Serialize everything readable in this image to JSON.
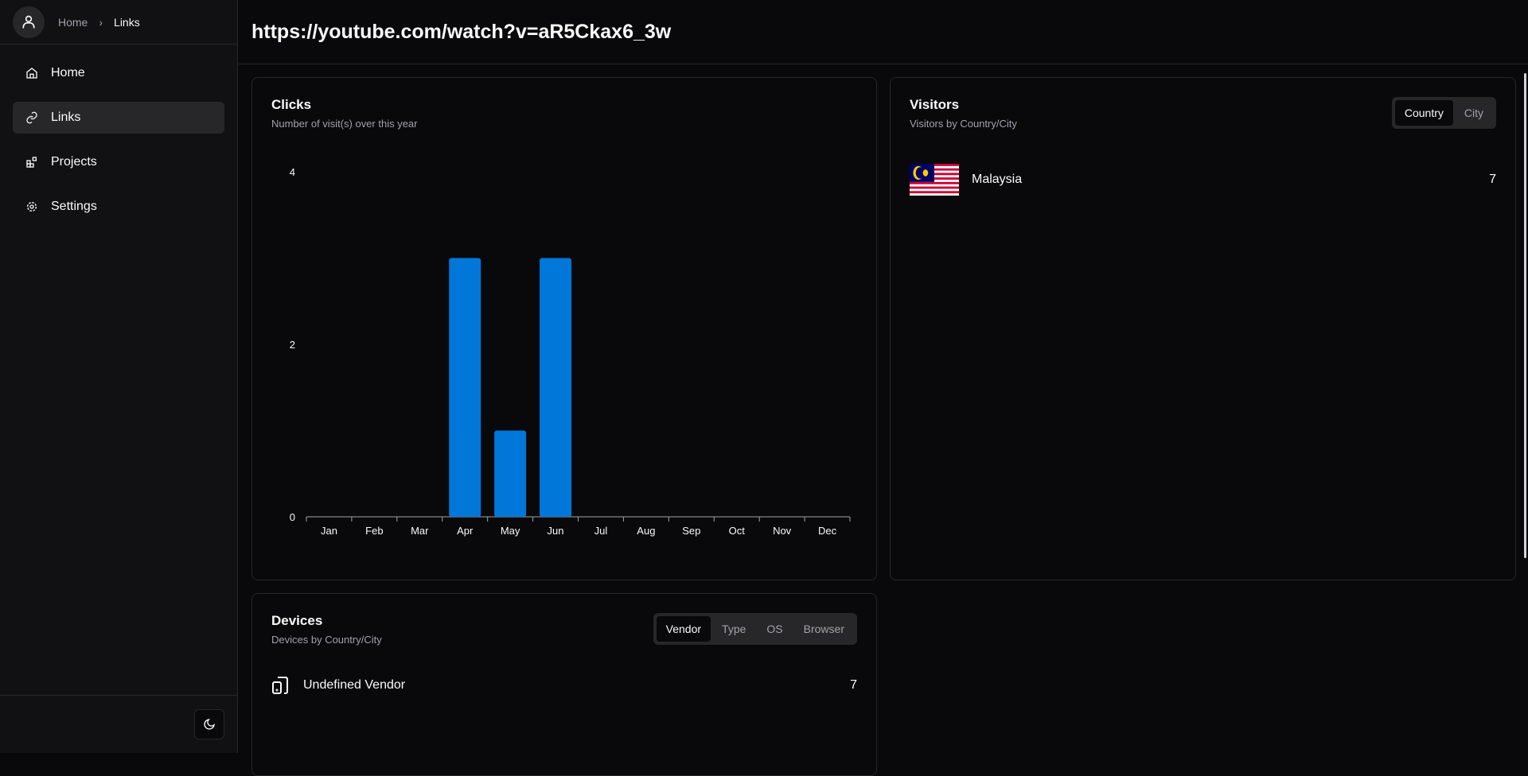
{
  "breadcrumb": {
    "home": "Home",
    "current": "Links"
  },
  "sidebar": {
    "items": [
      {
        "label": "Home",
        "icon": "home-icon"
      },
      {
        "label": "Links",
        "icon": "link-icon",
        "active": true
      },
      {
        "label": "Projects",
        "icon": "projects-icon"
      },
      {
        "label": "Settings",
        "icon": "gear-icon"
      }
    ]
  },
  "header": {
    "title": "https://youtube.com/watch?v=aR5Ckax6_3w"
  },
  "clicks": {
    "title": "Clicks",
    "subtitle": "Number of visit(s) over this year"
  },
  "visitors": {
    "title": "Visitors",
    "subtitle": "Visitors by Country/City",
    "tabs": [
      "Country",
      "City"
    ],
    "active_tab": "Country",
    "rows": [
      {
        "label": "Malaysia",
        "value": "7",
        "flag": "malaysia"
      }
    ]
  },
  "devices": {
    "title": "Devices",
    "subtitle": "Devices by Country/City",
    "tabs": [
      "Vendor",
      "Type",
      "OS",
      "Browser"
    ],
    "active_tab": "Vendor",
    "rows": [
      {
        "label": "Undefined Vendor",
        "value": "7",
        "icon": "device-icon"
      }
    ]
  },
  "chart_data": {
    "type": "bar",
    "categories": [
      "Jan",
      "Feb",
      "Mar",
      "Apr",
      "May",
      "Jun",
      "Jul",
      "Aug",
      "Sep",
      "Oct",
      "Nov",
      "Dec"
    ],
    "values": [
      0,
      0,
      0,
      3,
      1,
      3,
      0,
      0,
      0,
      0,
      0,
      0
    ],
    "yticks": [
      0,
      2,
      4
    ],
    "ylim": [
      0,
      4
    ],
    "color": "#0077d9",
    "grid": false
  }
}
